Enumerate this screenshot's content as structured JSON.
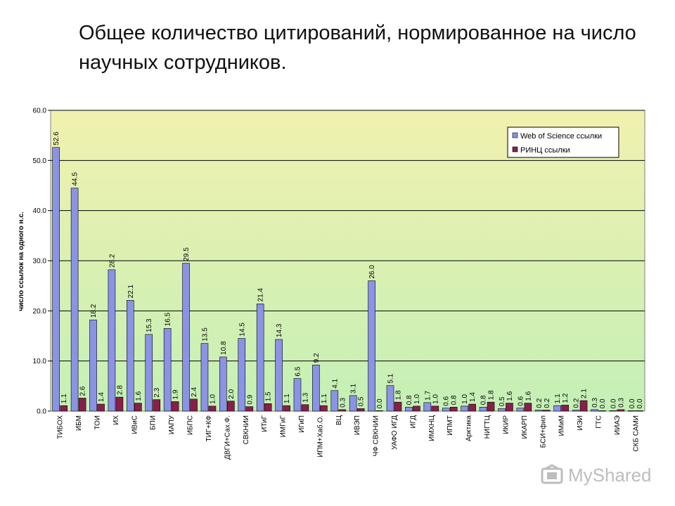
{
  "slide": {
    "title": "Общее количество цитирований, нормированное на число научных сотрудников."
  },
  "watermark": {
    "text": "MyShared",
    "icon": "mortarboard-icon"
  },
  "colors": {
    "wos": "#8B93E6",
    "rinc": "#8A1E4A",
    "grid": "#000000",
    "bg_top": "#F1F1AE",
    "bg_bottom": "#C4F0B6"
  },
  "chart_data": {
    "type": "bar",
    "title": "",
    "xlabel": "",
    "ylabel": "число ссылок на одного н.с.",
    "ylim": [
      0,
      60
    ],
    "yticks": [
      "0.0",
      "10.0",
      "20.0",
      "30.0",
      "40.0",
      "50.0",
      "60.0"
    ],
    "legend_position": "top-right",
    "categories": [
      "ТИБОХ",
      "ИБМ",
      "ТОИ",
      "ИХ",
      "ИВиС",
      "БПИ",
      "ИАПУ",
      "ИБПС",
      "ТИГ+КФ",
      "ДВГИ+Сах.Ф.",
      "СВКНИИ",
      "ИТиГ",
      "ИМГиГ",
      "ИГиП",
      "ИПМ+Хаб.О.",
      "ВЦ",
      "ИВЭП",
      "ЧФ СВКНИИ",
      "УАФО ИГД",
      "ИГД",
      "ИМХНЦ",
      "ИПМТ",
      "Арктика",
      "НИГТЦ",
      "ИКИР",
      "ИКАРП",
      "БСИ+фил",
      "ИМиМ",
      "ИЭИ",
      "ГТС",
      "ИИАЭ",
      "СКБ САМИ"
    ],
    "series": [
      {
        "name": "Web of Science ссылки",
        "values": [
          52.6,
          44.5,
          18.2,
          28.2,
          22.1,
          15.3,
          16.5,
          29.5,
          13.5,
          10.8,
          14.5,
          21.4,
          14.3,
          6.5,
          9.2,
          4.1,
          3.1,
          26.0,
          5.1,
          0.8,
          1.7,
          0.6,
          1.0,
          0.8,
          0.5,
          0.6,
          0.2,
          1.1,
          0.2,
          0.3,
          0.0,
          0.0
        ],
        "labels": [
          "52.6",
          "44.5",
          "18.2",
          "28.2",
          "22.1",
          "15.3",
          "16.5",
          "29.5",
          "13.5",
          "10.8",
          "14.5",
          "21.4",
          "14.3",
          "6.5",
          "9.2",
          "4.1",
          "3.1",
          "26.0",
          "5.1",
          "0.8",
          "1.7",
          "0.6",
          "1.0",
          "0.8",
          "0.5",
          "0.6",
          "0.2",
          "1.1",
          "0.2",
          "0.3",
          "0.0",
          "0.0"
        ]
      },
      {
        "name": "РИНЦ ссылки",
        "values": [
          1.1,
          2.6,
          1.4,
          2.8,
          1.6,
          2.3,
          1.9,
          2.4,
          1.0,
          2.0,
          0.9,
          1.5,
          1.1,
          1.3,
          1.1,
          0.3,
          0.5,
          0.0,
          1.8,
          1.0,
          1.0,
          0.8,
          1.4,
          1.8,
          1.6,
          1.6,
          0.2,
          1.2,
          2.1,
          0.0,
          0.3,
          0.0
        ],
        "labels": [
          "1.1",
          "2.6",
          "1.4",
          "2.8",
          "1.6",
          "2.3",
          "1.9",
          "2.4",
          "1.0",
          "2.0",
          "0.9",
          "1.5",
          "1.1",
          "1.3",
          "1.1",
          "0.3",
          "0.5",
          "0.0",
          "1.8",
          "1.0",
          "1.0",
          "0.8",
          "1.4",
          "1.8",
          "1.6",
          "1.6",
          "0.2",
          "1.2",
          "2.1",
          "0.0",
          "0.3",
          "0.0"
        ]
      }
    ]
  }
}
